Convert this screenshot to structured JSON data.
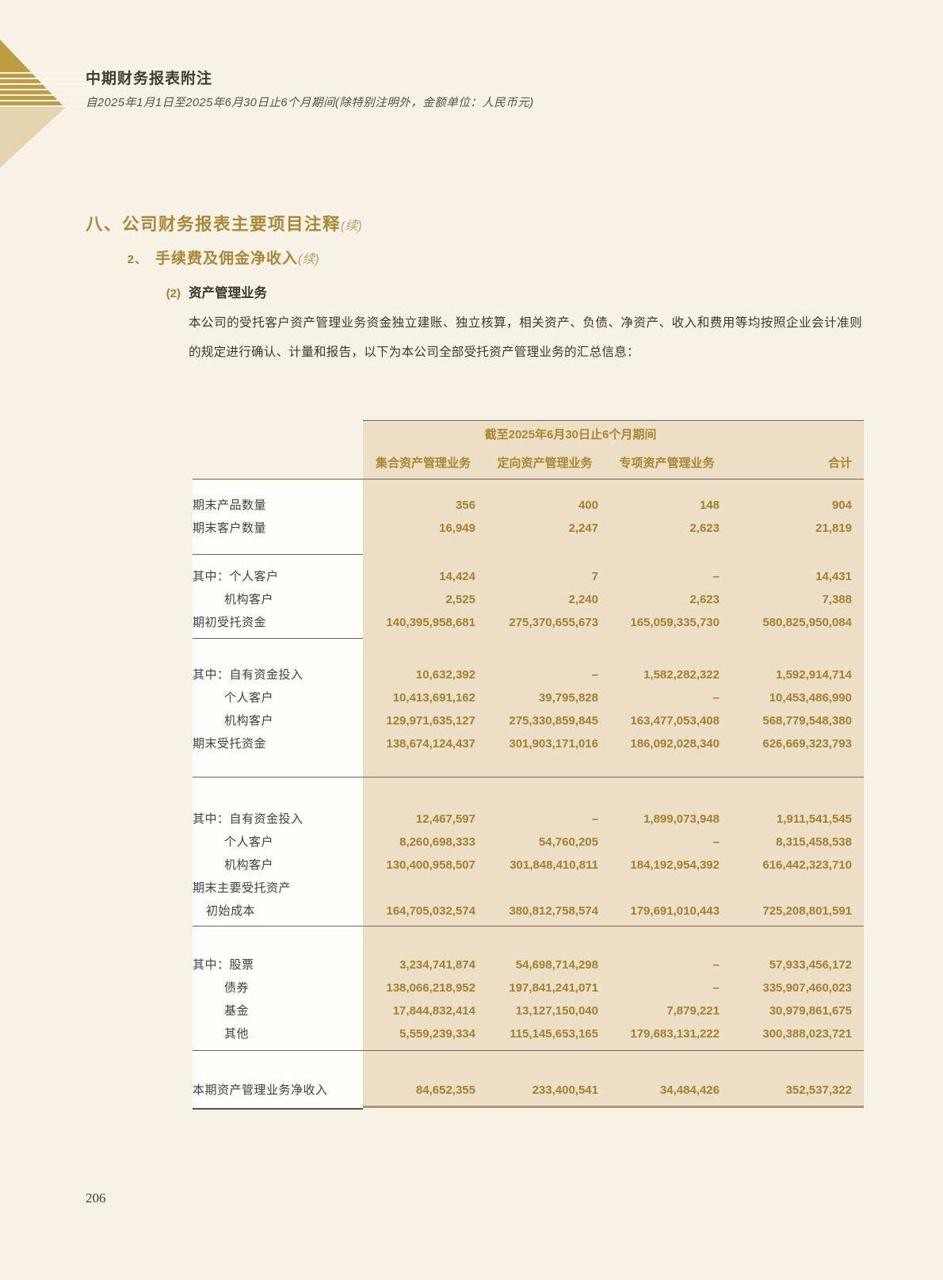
{
  "page": {
    "number": "206"
  },
  "header": {
    "title": "中期财务报表附注",
    "subtitle": "自2025年1月1日至2025年6月30日止6个月期间(除特别注明外，金额单位：人民币元)"
  },
  "section": {
    "title": "八、公司财务报表主要项目注释",
    "cont": "(续)"
  },
  "subsection": {
    "num": "2、",
    "title": "手续费及佣金净收入",
    "cont": "(续)"
  },
  "item": {
    "num": "(2)",
    "title": "资产管理业务"
  },
  "paragraph": "本公司的受托客户资产管理业务资金独立建账、独立核算，相关资产、负债、净资产、收入和费用等均按照企业会计准则的规定进行确认、计量和报告，以下为本公司全部受托资产管理业务的汇总信息：",
  "colors": {
    "heading_gold": "#ab8836",
    "number_gold": "#a1812f",
    "table_shade": "#ecdfc5",
    "page_background": "#f6f2e6",
    "decoration_gold": "#bf9b42",
    "decoration_tan": "#e4d5b0"
  },
  "table": {
    "period_header": "截至2025年6月30日止6个月期间",
    "columns": [
      "集合资产管理业务",
      "定向资产管理业务",
      "专项资产管理业务",
      "合计"
    ],
    "groups": [
      {
        "separator": "label",
        "rows": [
          {
            "label": "期末产品数量",
            "indent": 0,
            "values": [
              "356",
              "400",
              "148",
              "904"
            ]
          },
          {
            "label": "期末客户数量",
            "indent": 0,
            "values": [
              "16,949",
              "2,247",
              "2,623",
              "21,819"
            ]
          }
        ]
      },
      {
        "separator": "label",
        "rows": [
          {
            "label": "其中：个人客户",
            "indent": 0,
            "values": [
              "14,424",
              "7",
              "–",
              "14,431"
            ]
          },
          {
            "label": "机构客户",
            "indent": 1,
            "values": [
              "2,525",
              "2,240",
              "2,623",
              "7,388"
            ]
          },
          {
            "label": "期初受托资金",
            "indent": 0,
            "values": [
              "140,395,958,681",
              "275,370,655,673",
              "165,059,335,730",
              "580,825,950,084"
            ]
          }
        ]
      },
      {
        "separator": "full",
        "rows": [
          {
            "label": "其中：自有资金投入",
            "indent": 0,
            "values": [
              "10,632,392",
              "–",
              "1,582,282,322",
              "1,592,914,714"
            ]
          },
          {
            "label": "个人客户",
            "indent": 1,
            "values": [
              "10,413,691,162",
              "39,795,828",
              "–",
              "10,453,486,990"
            ]
          },
          {
            "label": "机构客户",
            "indent": 1,
            "values": [
              "129,971,635,127",
              "275,330,859,845",
              "163,477,053,408",
              "568,779,548,380"
            ]
          },
          {
            "label": "期末受托资金",
            "indent": 0,
            "values": [
              "138,674,124,437",
              "301,903,171,016",
              "186,092,028,340",
              "626,669,323,793"
            ]
          }
        ]
      },
      {
        "separator": "full",
        "rows": [
          {
            "label": "其中：自有资金投入",
            "indent": 0,
            "values": [
              "12,467,597",
              "–",
              "1,899,073,948",
              "1,911,541,545"
            ]
          },
          {
            "label": "个人客户",
            "indent": 1,
            "values": [
              "8,260,698,333",
              "54,760,205",
              "–",
              "8,315,458,538"
            ]
          },
          {
            "label": "机构客户",
            "indent": 1,
            "values": [
              "130,400,958,507",
              "301,848,410,811",
              "184,192,954,392",
              "616,442,323,710"
            ]
          },
          {
            "label": "期末主要受托资产",
            "indent": 0,
            "values": [
              "",
              "",
              "",
              ""
            ]
          },
          {
            "label": "初始成本",
            "indent": 2,
            "values": [
              "164,705,032,574",
              "380,812,758,574",
              "179,691,010,443",
              "725,208,801,591"
            ]
          }
        ]
      },
      {
        "separator": "full",
        "rows": [
          {
            "label": "其中：股票",
            "indent": 0,
            "values": [
              "3,234,741,874",
              "54,698,714,298",
              "–",
              "57,933,456,172"
            ]
          },
          {
            "label": "债券",
            "indent": 1,
            "values": [
              "138,066,218,952",
              "197,841,241,071",
              "–",
              "335,907,460,023"
            ]
          },
          {
            "label": "基金",
            "indent": 1,
            "values": [
              "17,844,832,414",
              "13,127,150,040",
              "7,879,221",
              "30,979,861,675"
            ]
          },
          {
            "label": "其他",
            "indent": 1,
            "values": [
              "5,559,239,334",
              "115,145,653,165",
              "179,683,131,222",
              "300,388,023,721"
            ]
          }
        ]
      },
      {
        "separator": "bottom",
        "rows": [
          {
            "label": "本期资产管理业务净收入",
            "indent": 0,
            "values": [
              "84,652,355",
              "233,400,541",
              "34,484,426",
              "352,537,322"
            ]
          }
        ]
      }
    ]
  }
}
